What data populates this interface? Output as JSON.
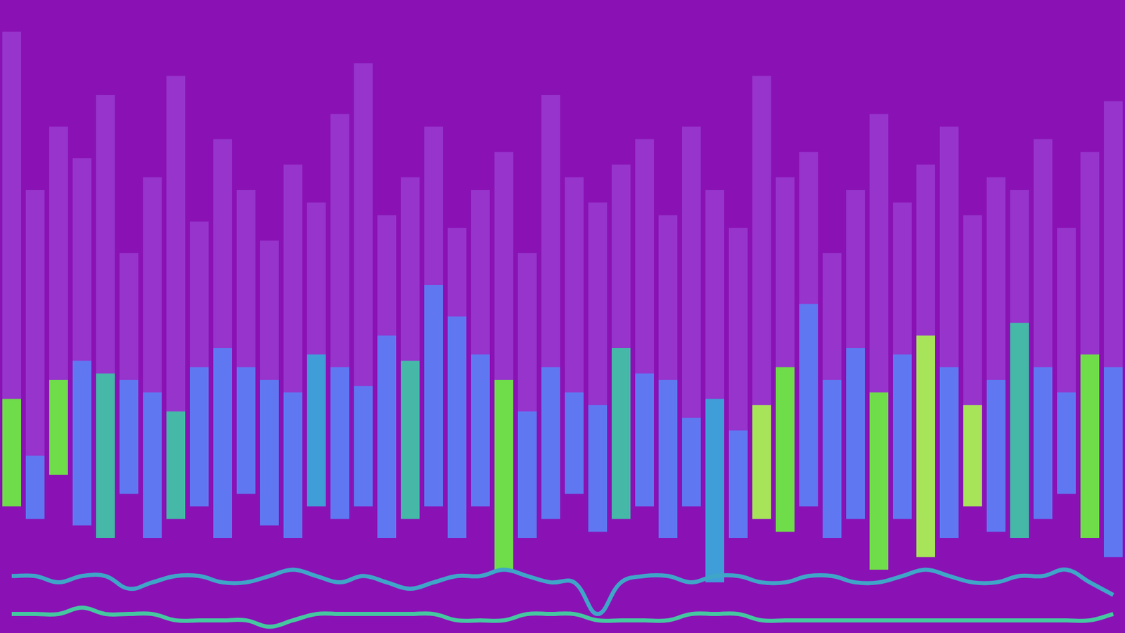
{
  "chart_data": {
    "type": "bar",
    "tick_labels": false,
    "grid": false,
    "ylim": [
      0,
      100
    ],
    "categories": [
      null,
      null,
      null,
      null,
      null,
      null,
      null,
      null,
      null,
      null,
      null,
      null,
      null,
      null,
      null,
      null,
      null,
      null,
      null,
      null,
      null,
      null,
      null,
      null,
      null,
      null,
      null,
      null,
      null,
      null,
      null,
      null,
      null,
      null,
      null,
      null,
      null,
      null,
      null,
      null,
      null,
      null,
      null,
      null,
      null,
      null,
      null,
      null
    ],
    "series": [
      {
        "type": "bar",
        "color": "#9634cc",
        "values": [
          [
            25,
            95
          ],
          [
            25,
            70
          ],
          [
            25,
            80
          ],
          [
            25,
            75
          ],
          [
            25,
            85
          ],
          [
            25,
            60
          ],
          [
            25,
            72
          ],
          [
            25,
            88
          ],
          [
            25,
            65
          ],
          [
            25,
            78
          ],
          [
            25,
            70
          ],
          [
            25,
            62
          ],
          [
            25,
            74
          ],
          [
            25,
            68
          ],
          [
            25,
            82
          ],
          [
            25,
            90
          ],
          [
            25,
            66
          ],
          [
            25,
            72
          ],
          [
            25,
            80
          ],
          [
            25,
            64
          ],
          [
            25,
            70
          ],
          [
            25,
            76
          ],
          [
            25,
            60
          ],
          [
            25,
            85
          ],
          [
            25,
            72
          ],
          [
            25,
            68
          ],
          [
            25,
            74
          ],
          [
            25,
            78
          ],
          [
            25,
            66
          ],
          [
            25,
            80
          ],
          [
            25,
            70
          ],
          [
            25,
            64
          ],
          [
            25,
            88
          ],
          [
            25,
            72
          ],
          [
            25,
            76
          ],
          [
            25,
            60
          ],
          [
            25,
            70
          ],
          [
            25,
            82
          ],
          [
            25,
            68
          ],
          [
            25,
            74
          ],
          [
            25,
            80
          ],
          [
            25,
            66
          ],
          [
            25,
            72
          ],
          [
            25,
            70
          ],
          [
            25,
            78
          ],
          [
            25,
            64
          ],
          [
            25,
            76
          ],
          [
            25,
            84
          ]
        ]
      },
      {
        "type": "bar",
        "colors": [
          "#6fdc4a",
          "#5f78f2",
          "#6fdc4a",
          "#5f78f2",
          "#45b8a8",
          "#5f78f2",
          "#5f78f2",
          "#45b8a8",
          "#5f78f2",
          "#5f78f2",
          "#5f78f2",
          "#5f78f2",
          "#5f78f2",
          "#3f9ed8",
          "#5f78f2",
          "#5f78f2",
          "#5f78f2",
          "#45b8a8",
          "#5f78f2",
          "#5f78f2",
          "#5f78f2",
          "#6fdc4a",
          "#5f78f2",
          "#5f78f2",
          "#5f78f2",
          "#5f78f2",
          "#45b8a8",
          "#5f78f2",
          "#5f78f2",
          "#5f78f2",
          "#3f9ed8",
          "#5f78f2",
          "#a8e45a",
          "#6fdc4a",
          "#5f78f2",
          "#5f78f2",
          "#5f78f2",
          "#6fdc4a",
          "#5f78f2",
          "#a8e45a",
          "#5f78f2",
          "#a8e45a",
          "#5f78f2",
          "#45b8a8",
          "#5f78f2",
          "#5f78f2",
          "#6fdc4a",
          "#5f78f2"
        ],
        "values": [
          [
            20,
            37
          ],
          [
            18,
            28
          ],
          [
            25,
            40
          ],
          [
            17,
            43
          ],
          [
            15,
            41
          ],
          [
            22,
            40
          ],
          [
            15,
            38
          ],
          [
            18,
            35
          ],
          [
            20,
            42
          ],
          [
            15,
            45
          ],
          [
            22,
            42
          ],
          [
            17,
            40
          ],
          [
            15,
            38
          ],
          [
            20,
            44
          ],
          [
            18,
            42
          ],
          [
            20,
            39
          ],
          [
            15,
            47
          ],
          [
            18,
            43
          ],
          [
            20,
            55
          ],
          [
            15,
            50
          ],
          [
            20,
            44
          ],
          [
            10,
            40
          ],
          [
            15,
            35
          ],
          [
            18,
            42
          ],
          [
            22,
            38
          ],
          [
            16,
            36
          ],
          [
            18,
            45
          ],
          [
            20,
            41
          ],
          [
            15,
            40
          ],
          [
            20,
            34
          ],
          [
            8,
            37
          ],
          [
            15,
            32
          ],
          [
            18,
            36
          ],
          [
            16,
            42
          ],
          [
            20,
            52
          ],
          [
            15,
            40
          ],
          [
            18,
            45
          ],
          [
            10,
            38
          ],
          [
            18,
            44
          ],
          [
            12,
            47
          ],
          [
            15,
            42
          ],
          [
            20,
            36
          ],
          [
            16,
            40
          ],
          [
            15,
            49
          ],
          [
            18,
            42
          ],
          [
            22,
            38
          ],
          [
            15,
            44
          ],
          [
            12,
            42
          ]
        ]
      },
      {
        "type": "line",
        "color": "#3fa6c8",
        "values": [
          9,
          9,
          8,
          9,
          9,
          7,
          8,
          9,
          9,
          8,
          8,
          9,
          10,
          9,
          8,
          9,
          8,
          7,
          8,
          9,
          9,
          10,
          9,
          8,
          8,
          3,
          8,
          9,
          9,
          8,
          9,
          9,
          8,
          8,
          9,
          9,
          8,
          8,
          9,
          10,
          9,
          8,
          8,
          9,
          9,
          10,
          8,
          6
        ]
      },
      {
        "type": "line",
        "color": "#45c8a0",
        "values": [
          3,
          3,
          3,
          4,
          3,
          3,
          3,
          2,
          2,
          2,
          2,
          1,
          2,
          3,
          3,
          3,
          3,
          3,
          3,
          2,
          2,
          2,
          3,
          3,
          3,
          2,
          2,
          2,
          2,
          3,
          3,
          3,
          2,
          2,
          2,
          2,
          2,
          2,
          2,
          2,
          2,
          2,
          2,
          2,
          2,
          2,
          2,
          3
        ]
      }
    ]
  }
}
